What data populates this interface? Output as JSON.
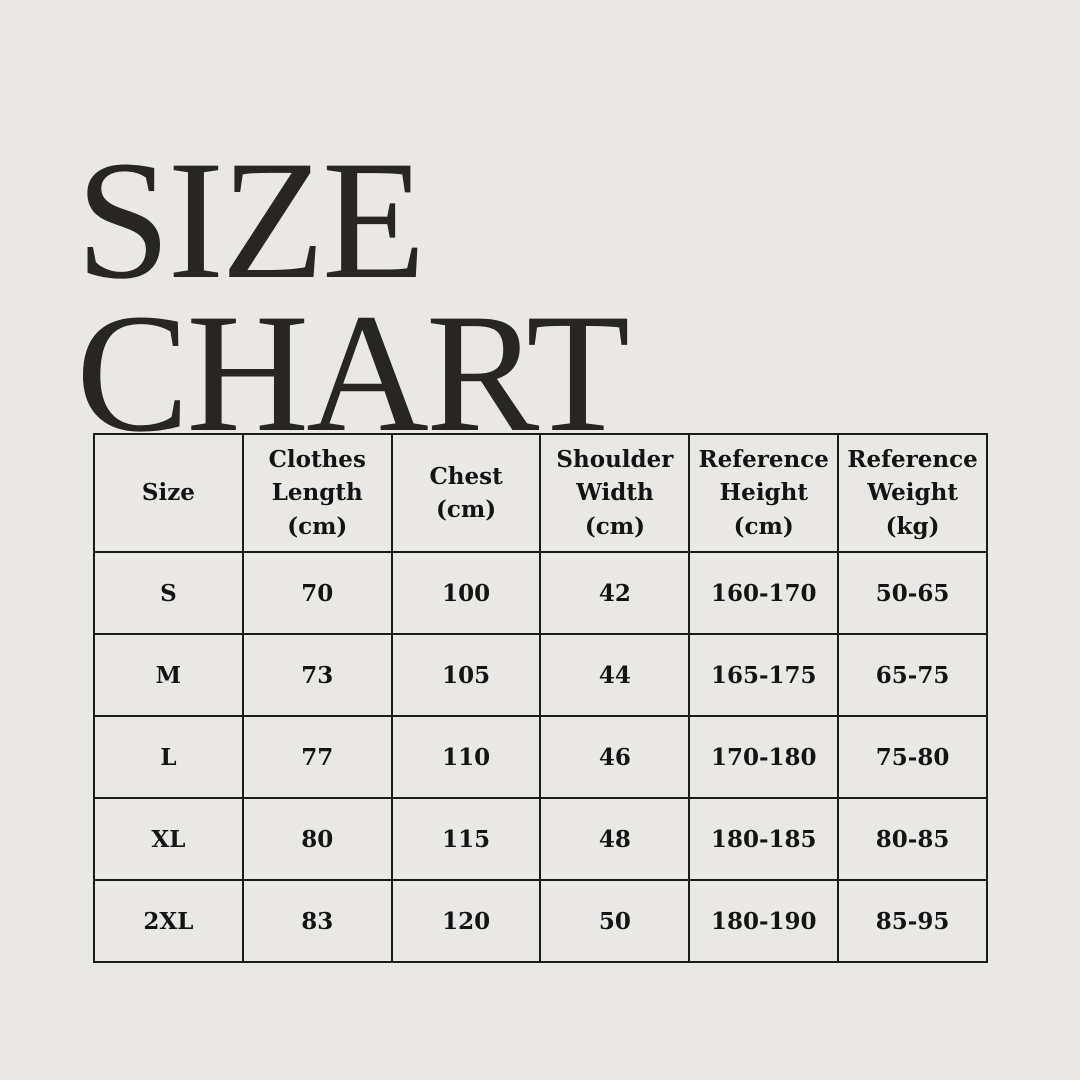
{
  "page": {
    "background_color": "#eae8e4",
    "title_color": "#272624",
    "table_text_color": "#141414",
    "border_color": "#1c1c1c"
  },
  "title": {
    "line1": "SIZE",
    "line2": "CHART"
  },
  "table": {
    "headers": [
      "Size",
      "Clothes\nLength\n(cm)",
      "Chest (cm)",
      "Shoulder\nWidth (cm)",
      "Reference\nHeight\n(cm)",
      "Reference\nWeight\n(kg)"
    ],
    "rows": [
      [
        "S",
        "70",
        "100",
        "42",
        "160-170",
        "50-65"
      ],
      [
        "M",
        "73",
        "105",
        "44",
        "165-175",
        "65-75"
      ],
      [
        "L",
        "77",
        "110",
        "46",
        "170-180",
        "75-80"
      ],
      [
        "XL",
        "80",
        "115",
        "48",
        "180-185",
        "80-85"
      ],
      [
        "2XL",
        "83",
        "120",
        "50",
        "180-190",
        "85-95"
      ]
    ]
  },
  "chart_data": {
    "type": "table",
    "title": "SIZE CHART",
    "columns": [
      "Size",
      "Clothes Length (cm)",
      "Chest (cm)",
      "Shoulder Width (cm)",
      "Reference Height (cm)",
      "Reference Weight (kg)"
    ],
    "rows": [
      {
        "size": "S",
        "clothes_length_cm": 70,
        "chest_cm": 100,
        "shoulder_width_cm": 42,
        "reference_height_cm": "160-170",
        "reference_weight_kg": "50-65"
      },
      {
        "size": "M",
        "clothes_length_cm": 73,
        "chest_cm": 105,
        "shoulder_width_cm": 44,
        "reference_height_cm": "165-175",
        "reference_weight_kg": "65-75"
      },
      {
        "size": "L",
        "clothes_length_cm": 77,
        "chest_cm": 110,
        "shoulder_width_cm": 46,
        "reference_height_cm": "170-180",
        "reference_weight_kg": "75-80"
      },
      {
        "size": "XL",
        "clothes_length_cm": 80,
        "chest_cm": 115,
        "shoulder_width_cm": 48,
        "reference_height_cm": "180-185",
        "reference_weight_kg": "80-85"
      },
      {
        "size": "2XL",
        "clothes_length_cm": 83,
        "chest_cm": 120,
        "shoulder_width_cm": 50,
        "reference_height_cm": "180-190",
        "reference_weight_kg": "85-95"
      }
    ]
  }
}
